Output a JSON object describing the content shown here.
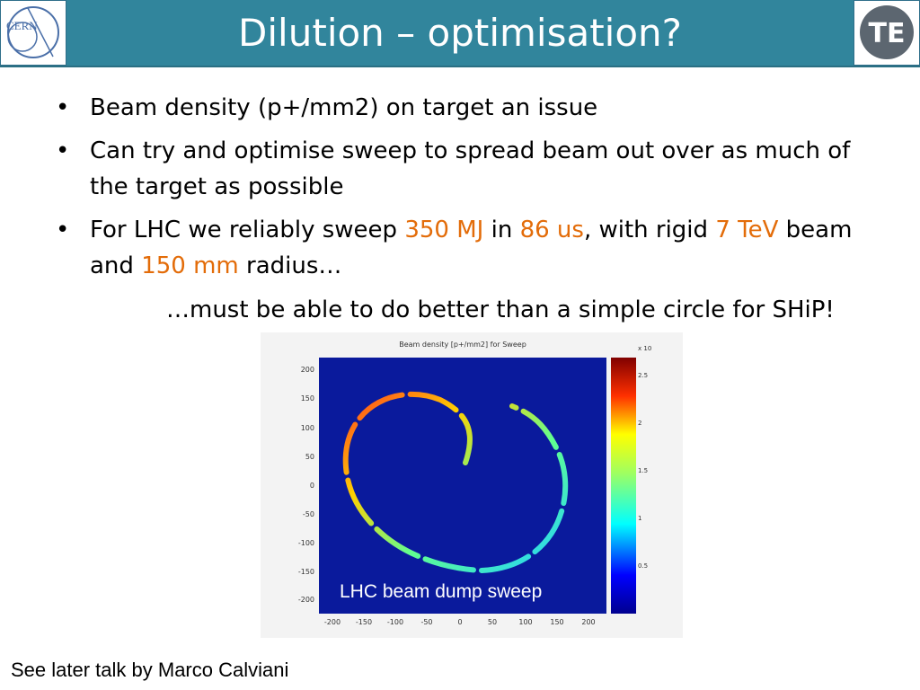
{
  "header": {
    "title": "Dilution – optimisation?",
    "left_logo_text": "CERN",
    "right_logo_text": "TE"
  },
  "bullets": [
    {
      "parts": [
        {
          "text": "Beam density (p+/mm2) on target an issue",
          "highlight": false
        }
      ]
    },
    {
      "parts": [
        {
          "text": "Can try and optimise sweep to spread beam out over as much of the target as possible",
          "highlight": false
        }
      ]
    },
    {
      "parts": [
        {
          "text": "For LHC we reliably sweep ",
          "highlight": false
        },
        {
          "text": "350 MJ",
          "highlight": true
        },
        {
          "text": " in ",
          "highlight": false
        },
        {
          "text": "86 us",
          "highlight": true
        },
        {
          "text": ", with rigid ",
          "highlight": false
        },
        {
          "text": "7 TeV",
          "highlight": true
        },
        {
          "text": " beam and ",
          "highlight": false
        },
        {
          "text": "150 mm",
          "highlight": true
        },
        {
          "text": " radius…",
          "highlight": false
        }
      ]
    }
  ],
  "quote": "…must be able to do better than a simple circle for SHiP!",
  "plot": {
    "title": "Beam density [p+/mm2] for Sweep",
    "caption": "LHC beam dump sweep",
    "x_ticks": [
      "-200",
      "-150",
      "-100",
      "-50",
      "0",
      "50",
      "100",
      "150",
      "200"
    ],
    "y_ticks": [
      "200",
      "150",
      "100",
      "50",
      "0",
      "-50",
      "-100",
      "-150",
      "-200"
    ],
    "colorbar_exponent": "x 10",
    "colorbar_ticks": [
      "2.5",
      "2",
      "1.5",
      "1",
      "0.5"
    ]
  },
  "footer": "See later talk by Marco Calviani",
  "colors": {
    "header": "#31859c",
    "highlight": "#e36c09",
    "plot_bg": "#0a1a9c"
  }
}
